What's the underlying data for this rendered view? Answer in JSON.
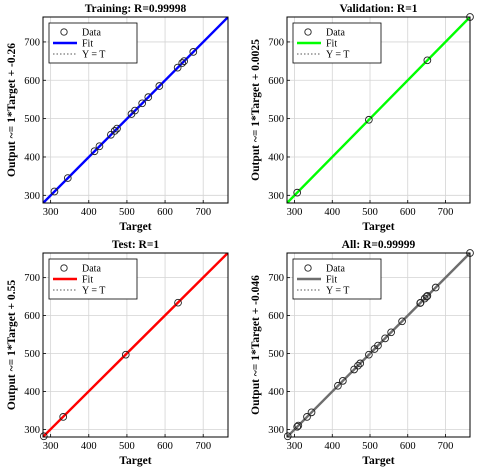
{
  "chart_data": [
    {
      "type": "scatter",
      "title": "Training: R=0.99998",
      "xlabel": "Target",
      "ylabel": "Output ~= 1*Target + -0.26",
      "xlim": [
        280,
        765
      ],
      "ylim": [
        280,
        765
      ],
      "xticks": [
        300,
        400,
        500,
        600,
        700
      ],
      "yticks": [
        300,
        400,
        500,
        600,
        700
      ],
      "fit_color": "#0000ff",
      "legend": {
        "placement": "top-left",
        "entries": [
          "Data",
          "Fit",
          "Y = T"
        ]
      },
      "series": [
        {
          "name": "Data",
          "x": [
            310,
            345,
            415,
            428,
            458,
            468,
            474,
            512,
            521,
            540,
            556,
            585,
            633,
            645,
            650,
            674
          ],
          "y": [
            310,
            345,
            415,
            428,
            458,
            468,
            474,
            512,
            521,
            540,
            556,
            585,
            633,
            645,
            650,
            674
          ]
        },
        {
          "name": "Fit",
          "x": [
            280,
            765
          ],
          "y": [
            279.74,
            764.74
          ]
        },
        {
          "name": "Y = T",
          "x": [
            280,
            765
          ],
          "y": [
            280,
            765
          ]
        }
      ]
    },
    {
      "type": "scatter",
      "title": "Validation: R=1",
      "xlabel": "Target",
      "ylabel": "Output ~= 1*Target + 0.0025",
      "xlim": [
        280,
        765
      ],
      "ylim": [
        280,
        765
      ],
      "xticks": [
        300,
        400,
        500,
        600,
        700
      ],
      "yticks": [
        300,
        400,
        500,
        600,
        700
      ],
      "fit_color": "#00ff00",
      "legend": {
        "placement": "top-left",
        "entries": [
          "Data",
          "Fit",
          "Y = T"
        ]
      },
      "series": [
        {
          "name": "Data",
          "x": [
            307,
            497,
            652,
            765
          ],
          "y": [
            307,
            497,
            652,
            765
          ]
        },
        {
          "name": "Fit",
          "x": [
            280,
            765
          ],
          "y": [
            280,
            765
          ]
        },
        {
          "name": "Y = T",
          "x": [
            280,
            765
          ],
          "y": [
            280,
            765
          ]
        }
      ]
    },
    {
      "type": "scatter",
      "title": "Test: R=1",
      "xlabel": "Target",
      "ylabel": "Output ~= 1*Target + 0.55",
      "xlim": [
        280,
        765
      ],
      "ylim": [
        280,
        765
      ],
      "xticks": [
        300,
        400,
        500,
        600,
        700
      ],
      "yticks": [
        300,
        400,
        500,
        600,
        700
      ],
      "fit_color": "#ff0000",
      "legend": {
        "placement": "top-left",
        "entries": [
          "Data",
          "Fit",
          "Y = T"
        ]
      },
      "series": [
        {
          "name": "Data",
          "x": [
            282,
            333,
            497,
            634
          ],
          "y": [
            282,
            333,
            497,
            634
          ]
        },
        {
          "name": "Fit",
          "x": [
            280,
            765
          ],
          "y": [
            280.55,
            765.55
          ]
        },
        {
          "name": "Y = T",
          "x": [
            280,
            765
          ],
          "y": [
            280,
            765
          ]
        }
      ]
    },
    {
      "type": "scatter",
      "title": "All: R=0.99999",
      "xlabel": "Target",
      "ylabel": "Output ~= 1*Target + -0.046",
      "xlim": [
        280,
        765
      ],
      "ylim": [
        280,
        765
      ],
      "xticks": [
        300,
        400,
        500,
        600,
        700
      ],
      "yticks": [
        300,
        400,
        500,
        600,
        700
      ],
      "fit_color": "#6e6e6e",
      "legend": {
        "placement": "top-left",
        "entries": [
          "Data",
          "Fit",
          "Y = T"
        ]
      },
      "series": [
        {
          "name": "Data",
          "x": [
            282,
            307,
            310,
            333,
            345,
            415,
            428,
            458,
            468,
            474,
            497,
            512,
            521,
            540,
            556,
            585,
            633,
            634,
            645,
            650,
            652,
            674,
            765
          ],
          "y": [
            282,
            307,
            310,
            333,
            345,
            415,
            428,
            458,
            468,
            474,
            497,
            512,
            521,
            540,
            556,
            585,
            633,
            634,
            645,
            650,
            652,
            674,
            765
          ]
        },
        {
          "name": "Fit",
          "x": [
            280,
            765
          ],
          "y": [
            279.95,
            764.95
          ]
        },
        {
          "name": "Y = T",
          "x": [
            280,
            765
          ],
          "y": [
            280,
            765
          ]
        }
      ]
    }
  ]
}
